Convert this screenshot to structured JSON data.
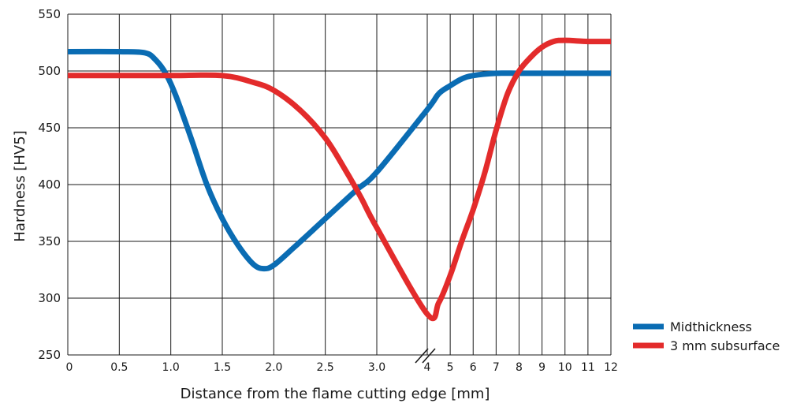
{
  "chart_data": {
    "type": "line",
    "title": "",
    "xlabel": "Distance from the flame cutting edge [mm]",
    "ylabel": "Hardness [HV5]",
    "ylim": [
      250,
      550
    ],
    "y_ticks": [
      250,
      300,
      350,
      400,
      450,
      500,
      550
    ],
    "x_ticks": [
      "0",
      "0.5",
      "1.0",
      "1.5",
      "2.0",
      "2.5",
      "3.0",
      "4",
      "5",
      "6",
      "7",
      "8",
      "9",
      "10",
      "11",
      "12"
    ],
    "x_scale": "piecewise: linear 0-3.0 mm, axis break, then linear 4-12 mm",
    "grid": true,
    "axis_break_after": 3.0,
    "legend_position": "bottom-right",
    "series": [
      {
        "name": "Midthickness",
        "color": "#0a6cb3",
        "points": [
          [
            0,
            517
          ],
          [
            0.5,
            517
          ],
          [
            0.75,
            516
          ],
          [
            0.85,
            510
          ],
          [
            0.95,
            498
          ],
          [
            1.05,
            478
          ],
          [
            1.2,
            440
          ],
          [
            1.35,
            400
          ],
          [
            1.5,
            370
          ],
          [
            1.65,
            347
          ],
          [
            1.8,
            330
          ],
          [
            1.9,
            326
          ],
          [
            2.0,
            329
          ],
          [
            2.2,
            345
          ],
          [
            2.5,
            370
          ],
          [
            2.8,
            395
          ],
          [
            3.0,
            411
          ],
          [
            4,
            466
          ],
          [
            4.5,
            480
          ],
          [
            5,
            487
          ],
          [
            5.5,
            493
          ],
          [
            6,
            496
          ],
          [
            7,
            498
          ],
          [
            8,
            498
          ],
          [
            9,
            498
          ],
          [
            10,
            498
          ],
          [
            11,
            498
          ],
          [
            12,
            498
          ]
        ]
      },
      {
        "name": "3 mm subsurface",
        "color": "#e32b2b",
        "points": [
          [
            0,
            496
          ],
          [
            0.5,
            496
          ],
          [
            1.0,
            496
          ],
          [
            1.5,
            496
          ],
          [
            1.8,
            490
          ],
          [
            2.0,
            483
          ],
          [
            2.25,
            466
          ],
          [
            2.5,
            441
          ],
          [
            2.7,
            412
          ],
          [
            2.85,
            388
          ],
          [
            3.0,
            362
          ],
          [
            4,
            286
          ],
          [
            4.5,
            296
          ],
          [
            5,
            320
          ],
          [
            5.5,
            350
          ],
          [
            6,
            378
          ],
          [
            6.5,
            410
          ],
          [
            7,
            448
          ],
          [
            7.5,
            480
          ],
          [
            8,
            500
          ],
          [
            8.5,
            512
          ],
          [
            9,
            521
          ],
          [
            9.5,
            526
          ],
          [
            10,
            527
          ],
          [
            11,
            526
          ],
          [
            12,
            526
          ]
        ]
      }
    ]
  }
}
